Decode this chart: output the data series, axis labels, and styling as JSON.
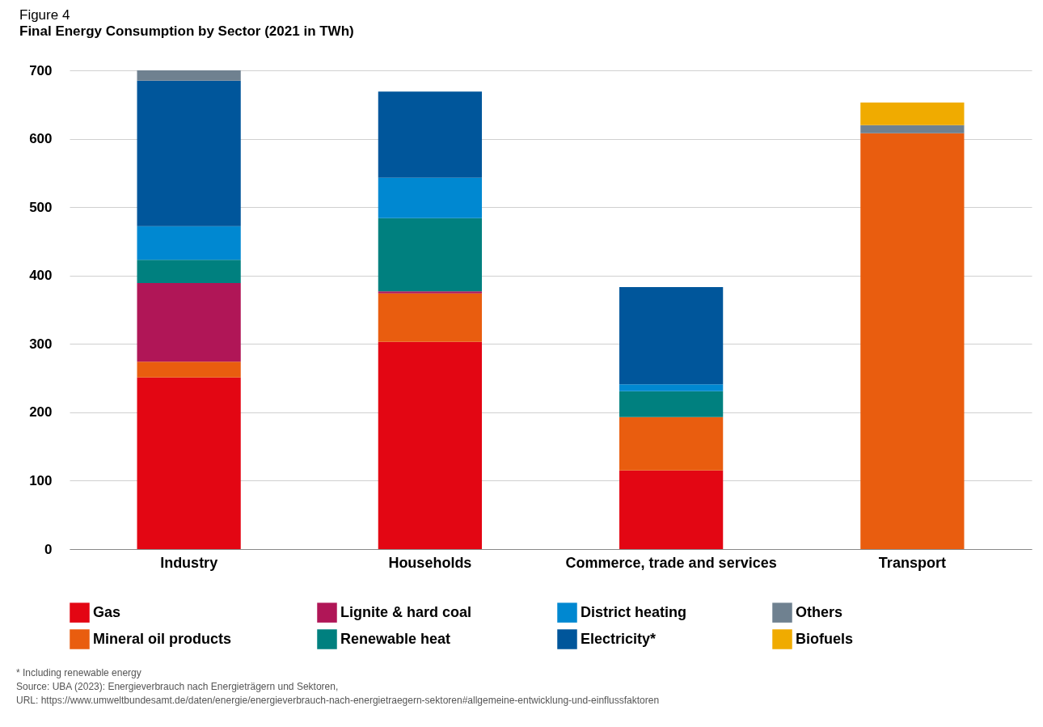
{
  "chart_data": {
    "type": "bar",
    "title": "Figure 4",
    "subtitle": "Final Energy Consumption by Sector (2021 in TWh)",
    "stacked": true,
    "categories": [
      "Industry",
      "Households",
      "Commerce, trade and services",
      "Transport"
    ],
    "series": [
      {
        "name": "Gas",
        "color": "#e30613",
        "values": [
          251,
          303,
          115,
          null
        ]
      },
      {
        "name": "Mineral oil products",
        "color": "#e95d0f",
        "values": [
          23,
          71,
          78,
          608
        ]
      },
      {
        "name": "Lignite & hard coal",
        "color": "#b01657",
        "values": [
          115,
          3,
          null,
          null
        ]
      },
      {
        "name": "Renewable heat",
        "color": "#00807f",
        "values": [
          34,
          107,
          38,
          null
        ]
      },
      {
        "name": "District heating",
        "color": "#0088d1",
        "values": [
          49,
          59,
          10,
          null
        ]
      },
      {
        "name": "Electricity*",
        "color": "#00569b",
        "values": [
          213,
          126,
          142,
          null
        ]
      },
      {
        "name": "Others",
        "color": "#6f8190",
        "values": [
          15,
          null,
          null,
          12
        ]
      },
      {
        "name": "Biofuels",
        "color": "#f0ab00",
        "values": [
          null,
          null,
          null,
          33
        ]
      }
    ],
    "ylim": [
      0,
      700
    ],
    "yticks": [
      0,
      100,
      200,
      300,
      400,
      500,
      600,
      700
    ],
    "grid": "y",
    "legend": "bottom",
    "annotations": [
      "* Including renewable energy",
      "Source: UBA (2023): Energieverbrauch nach Energieträgern und Sektoren,",
      "URL: https://www.umweltbundesamt.de/daten/energie/energieverbrauch-nach-energietraegern-sektoren#allgemeine-entwicklung-und-einflussfaktoren"
    ]
  }
}
